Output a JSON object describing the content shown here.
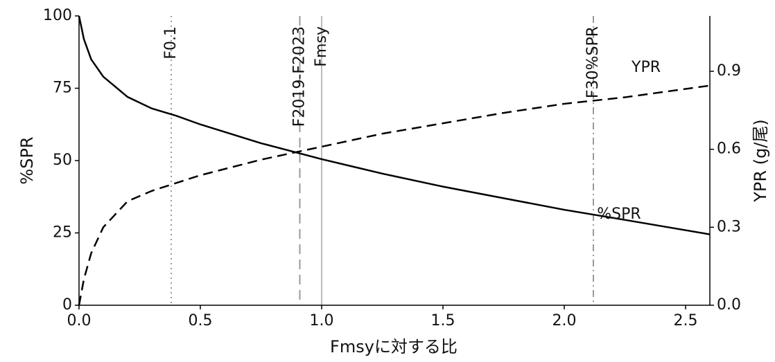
{
  "chart_data": {
    "type": "line",
    "xlabel": "Fmsyに対する比",
    "ylabel": "%SPR",
    "y2label": "YPR (g/尾)",
    "x": [
      0,
      0.02,
      0.05,
      0.1,
      0.2,
      0.3,
      0.4,
      0.5,
      0.75,
      1.0,
      1.25,
      1.5,
      1.75,
      2.0,
      2.25,
      2.6
    ],
    "series": [
      {
        "name": "%SPR",
        "color": "#000000",
        "dash": "solid",
        "values": [
          100,
          92,
          85,
          79,
          72,
          68,
          65.5,
          62.5,
          56,
          50.5,
          45.5,
          41,
          37,
          33,
          29.5,
          24.5
        ]
      },
      {
        "name": "YPR",
        "color": "#000000",
        "dash": "dashed",
        "axis": "y2",
        "values": [
          0,
          0.1,
          0.2,
          0.3,
          0.4,
          0.44,
          0.47,
          0.5,
          0.56,
          0.61,
          0.66,
          0.7,
          0.74,
          0.775,
          0.8,
          0.845
        ]
      }
    ],
    "reference_lines": [
      {
        "label": "F0.1",
        "x": 0.38,
        "color": "#999999",
        "dash": "dotted"
      },
      {
        "label": "F2019-F2023",
        "x": 0.91,
        "color": "#999999",
        "dash": "dashed"
      },
      {
        "label": "Fmsy",
        "x": 1.0,
        "color": "#bbbbbb",
        "dash": "solid"
      },
      {
        "label": "F30%SPR",
        "x": 2.12,
        "color": "#999999",
        "dash": "dashdot"
      }
    ],
    "xlim": [
      0,
      2.6
    ],
    "xticks": [
      {
        "value": 0,
        "label": "0.0"
      },
      0.5,
      {
        "value": 1,
        "label": "1.0"
      },
      1.5,
      {
        "value": 2,
        "label": "2.0"
      },
      2.5
    ],
    "ylim": [
      0,
      100
    ],
    "yticks": [
      0,
      25,
      50,
      75,
      100
    ],
    "y2lim": [
      0,
      1.113
    ],
    "y2ticks": [
      {
        "value": 0,
        "label": "0.0"
      },
      0.3,
      0.6,
      0.9
    ]
  }
}
